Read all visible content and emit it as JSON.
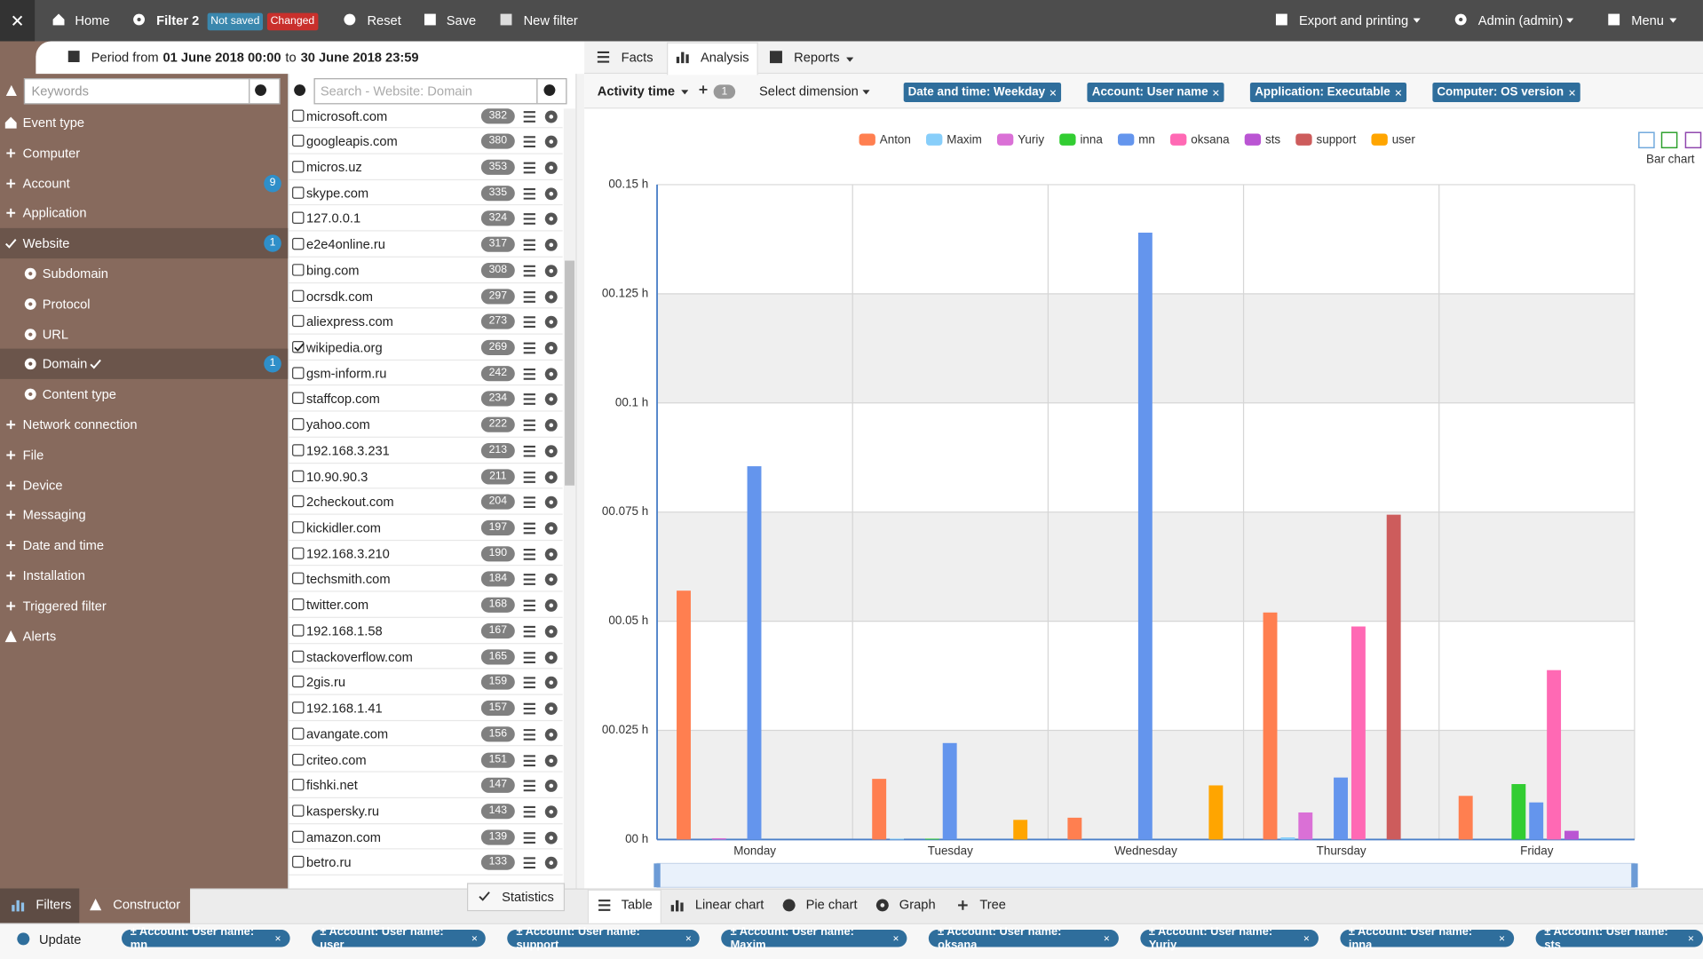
{
  "toolbar": {
    "home": "Home",
    "filter": "Filter 2",
    "not_saved": "Not saved",
    "changed": "Changed",
    "reset": "Reset",
    "save": "Save",
    "new_filter": "New filter",
    "export": "Export and printing",
    "admin": "Admin (admin)",
    "menu": "Menu"
  },
  "period": {
    "prefix": "Period from",
    "start": "01 June 2018 00:00",
    "middle": "to",
    "end": "30 June 2018 23:59"
  },
  "sidebar": {
    "search_placeholder": "Keywords",
    "items": [
      {
        "label": "Event type"
      },
      {
        "label": "Computer"
      },
      {
        "label": "Account",
        "badge": 9
      },
      {
        "label": "Application"
      },
      {
        "label": "Website",
        "badge": 1,
        "selected": true
      },
      {
        "label": "Subdomain",
        "sub": true
      },
      {
        "label": "Protocol",
        "sub": true
      },
      {
        "label": "URL",
        "sub": true
      },
      {
        "label": "Domain",
        "badge": 1,
        "selected": true,
        "sub": true
      },
      {
        "label": "Content type",
        "sub": true
      },
      {
        "label": "Network connection"
      },
      {
        "label": "File"
      },
      {
        "label": "Device"
      },
      {
        "label": "Messaging"
      },
      {
        "label": "Date and time"
      },
      {
        "label": "Installation"
      },
      {
        "label": "Triggered filter"
      },
      {
        "label": "Alerts"
      }
    ]
  },
  "domains": {
    "search_placeholder": "Search - Website: Domain",
    "items": [
      {
        "name": "microsoft.com",
        "count": 382
      },
      {
        "name": "googleapis.com",
        "count": 380
      },
      {
        "name": "micros.uz",
        "count": 353
      },
      {
        "name": "skype.com",
        "count": 335
      },
      {
        "name": "127.0.0.1",
        "count": 324
      },
      {
        "name": "e2e4online.ru",
        "count": 317
      },
      {
        "name": "bing.com",
        "count": 308
      },
      {
        "name": "ocrsdk.com",
        "count": 297
      },
      {
        "name": "aliexpress.com",
        "count": 273
      },
      {
        "name": "wikipedia.org",
        "count": 269,
        "checked": true
      },
      {
        "name": "gsm-inform.ru",
        "count": 242
      },
      {
        "name": "staffcop.com",
        "count": 234
      },
      {
        "name": "yahoo.com",
        "count": 222
      },
      {
        "name": "192.168.3.231",
        "count": 213
      },
      {
        "name": "10.90.90.3",
        "count": 211
      },
      {
        "name": "2checkout.com",
        "count": 204
      },
      {
        "name": "kickidler.com",
        "count": 197
      },
      {
        "name": "192.168.3.210",
        "count": 190
      },
      {
        "name": "techsmith.com",
        "count": 184
      },
      {
        "name": "twitter.com",
        "count": 168
      },
      {
        "name": "192.168.1.58",
        "count": 167
      },
      {
        "name": "stackoverflow.com",
        "count": 165
      },
      {
        "name": "2gis.ru",
        "count": 159
      },
      {
        "name": "192.168.1.41",
        "count": 157
      },
      {
        "name": "avangate.com",
        "count": 156
      },
      {
        "name": "criteo.com",
        "count": 151
      },
      {
        "name": "fishki.net",
        "count": 147
      },
      {
        "name": "kaspersky.ru",
        "count": 143
      },
      {
        "name": "amazon.com",
        "count": 139
      },
      {
        "name": "betro.ru",
        "count": 133
      }
    ]
  },
  "tabs": [
    "Facts",
    "Analysis",
    "Reports"
  ],
  "dimension_bar": {
    "measure": "Activity time",
    "sort_count": 1,
    "select": "Select dimension",
    "chips": [
      "Date and time: Weekday",
      "Account: User name",
      "Application: Executable",
      "Computer: OS version"
    ]
  },
  "chart_data": {
    "type": "bar",
    "chart_type_label": "Bar chart",
    "categories": [
      "Monday",
      "Tuesday",
      "Wednesday",
      "Thursday",
      "Friday"
    ],
    "series": [
      {
        "name": "Anton",
        "color": "#ff7f50",
        "values": [
          0.057,
          0.0139,
          0.005,
          0.052,
          0.01
        ]
      },
      {
        "name": "Maxim",
        "color": "#87cefa",
        "values": [
          0,
          0.0002,
          0,
          0.0005,
          0
        ]
      },
      {
        "name": "Yuriy",
        "color": "#da70d6",
        "values": [
          0.0003,
          0,
          0,
          0.0062,
          0
        ]
      },
      {
        "name": "inna",
        "color": "#32cd32",
        "values": [
          0,
          0.0002,
          0,
          0,
          0.0127
        ]
      },
      {
        "name": "mn",
        "color": "#6495ed",
        "values": [
          0.0855,
          0.0221,
          0.139,
          0.0142,
          0.0085
        ]
      },
      {
        "name": "oksana",
        "color": "#ff69b4",
        "values": [
          0,
          0,
          0,
          0.0488,
          0.0388
        ]
      },
      {
        "name": "sts",
        "color": "#ba55d3",
        "values": [
          0,
          0,
          0,
          0,
          0.002
        ]
      },
      {
        "name": "support",
        "color": "#cd5c5c",
        "values": [
          0,
          0,
          0,
          0.0744,
          0
        ]
      },
      {
        "name": "user",
        "color": "#ffa500",
        "values": [
          0,
          0.0045,
          0.0124,
          0,
          0
        ]
      }
    ],
    "ylim": [
      0,
      0.15
    ],
    "yticks": [
      {
        "value": 0,
        "label": "00 h"
      },
      {
        "value": 0.025,
        "label": "00.025 h"
      },
      {
        "value": 0.05,
        "label": "00.05 h"
      },
      {
        "value": 0.075,
        "label": "00.075 h"
      },
      {
        "value": 0.1,
        "label": "00.1 h"
      },
      {
        "value": 0.125,
        "label": "00.125 h"
      },
      {
        "value": 0.15,
        "label": "00.15 h"
      }
    ],
    "grid": true,
    "legend": "top"
  },
  "views": [
    "Table",
    "Linear chart",
    "Pie chart",
    "Graph",
    "Tree"
  ],
  "panel_tabs": [
    "Filters",
    "Constructor"
  ],
  "statistics": "Statistics",
  "update": "Update",
  "filter_chips": [
    "± Account: User name: mn",
    "± Account: User name: user",
    "± Account: User name: support",
    "± Account: User name: Maxim",
    "± Account: User name: oksana",
    "± Account: User name: Yuriy",
    "± Account: User name: inna",
    "± Account: User name: sts"
  ]
}
